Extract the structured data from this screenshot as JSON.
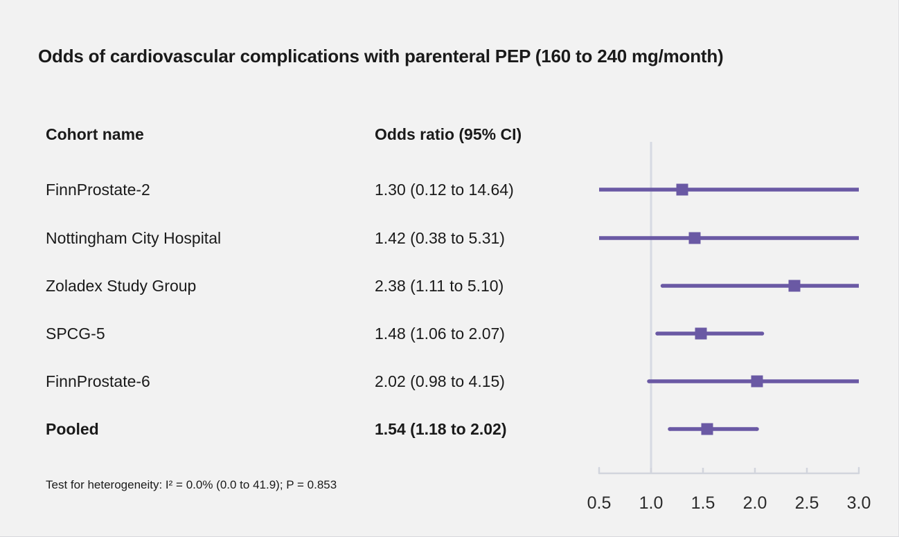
{
  "title": "Odds of cardiovascular complications with parenteral PEP (160 to 240 mg/month)",
  "table": {
    "col1_header": "Cohort name",
    "col2_header": "Odds ratio (95% CI)"
  },
  "footnote": "Test for heterogeneity: I² = 0.0% (0.0 to 41.9); P = 0.853",
  "colors": {
    "background": "#f2f2f2",
    "purple": "#6a59a4",
    "axis_line": "#d2d5dd",
    "reference_line": "#d7dae3",
    "text": "#1a1a1a",
    "tick_text": "#2b2b2b"
  },
  "chart_data": {
    "type": "forest",
    "title": "Odds of cardiovascular complications with parenteral PEP (160 to 240 mg/month)",
    "xlabel": "",
    "x_axis": {
      "range": [
        0.5,
        3.0
      ],
      "ticks": [
        0.5,
        1.0,
        1.5,
        2.0,
        2.5,
        3.0
      ],
      "tick_labels": [
        "0.5",
        "1.0",
        "1.5",
        "2.0",
        "2.5",
        "3.0"
      ],
      "reference_line": 1.0
    },
    "rows": [
      {
        "cohort": "FinnProstate-2",
        "or_label": "1.30 (0.12 to 14.64)",
        "or": 1.3,
        "ci_low": 0.12,
        "ci_high": 14.64,
        "bold": false
      },
      {
        "cohort": "Nottingham City Hospital",
        "or_label": "1.42 (0.38 to 5.31)",
        "or": 1.42,
        "ci_low": 0.38,
        "ci_high": 5.31,
        "bold": false
      },
      {
        "cohort": "Zoladex Study Group",
        "or_label": "2.38 (1.11 to 5.10)",
        "or": 2.38,
        "ci_low": 1.11,
        "ci_high": 5.1,
        "bold": false
      },
      {
        "cohort": "SPCG-5",
        "or_label": "1.48 (1.06 to 2.07)",
        "or": 1.48,
        "ci_low": 1.06,
        "ci_high": 2.07,
        "bold": false
      },
      {
        "cohort": "FinnProstate-6",
        "or_label": "2.02 (0.98 to 4.15)",
        "or": 2.02,
        "ci_low": 0.98,
        "ci_high": 4.15,
        "bold": false
      },
      {
        "cohort": "Pooled",
        "or_label": "1.54 (1.18 to 2.02)",
        "or": 1.54,
        "ci_low": 1.18,
        "ci_high": 2.02,
        "bold": true
      }
    ]
  }
}
